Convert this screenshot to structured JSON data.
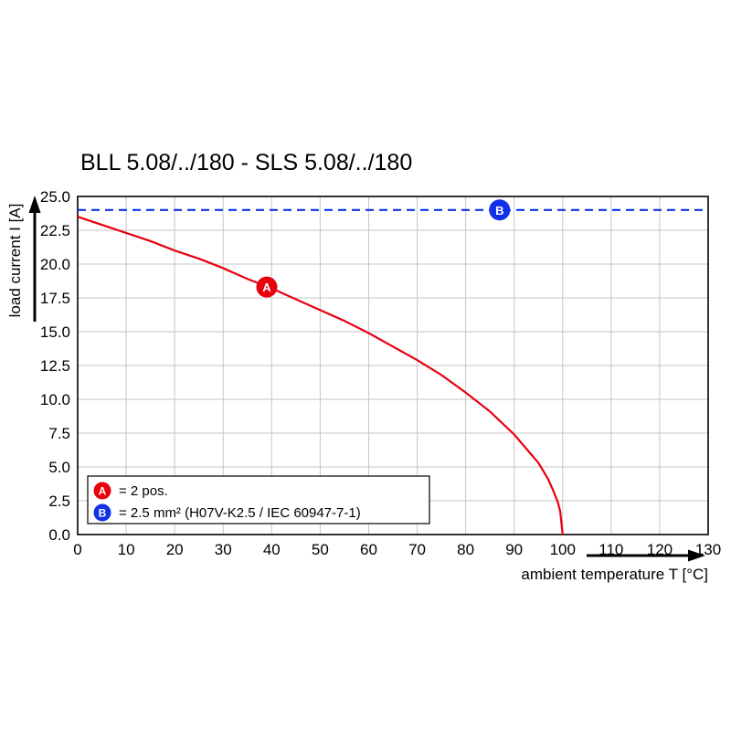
{
  "chart_data": {
    "type": "line",
    "title": "BLL 5.08/../180 - SLS 5.08/../180",
    "xlabel": "ambient temperature T [°C]",
    "ylabel": "load current I [A]",
    "xlim": [
      0,
      130
    ],
    "ylim": [
      0,
      25
    ],
    "xticks": [
      0,
      10,
      20,
      30,
      40,
      50,
      60,
      70,
      80,
      90,
      100,
      110,
      120,
      130
    ],
    "yticks": [
      0,
      2.5,
      5,
      7.5,
      10,
      12.5,
      15,
      17.5,
      20,
      22.5,
      25
    ],
    "grid": true,
    "colors": {
      "curve_red": "#e8000d",
      "line_blue": "#1031e8",
      "grid_gray": "#c6c6c6",
      "frame_black": "#000000"
    },
    "series": [
      {
        "name": "A",
        "style": "solid",
        "color": "#e8000d",
        "x": [
          0,
          5,
          10,
          15,
          20,
          25,
          30,
          35,
          40,
          45,
          50,
          55,
          60,
          65,
          70,
          75,
          80,
          85,
          90,
          95,
          96,
          97,
          98,
          99,
          99.5,
          100
        ],
        "y": [
          23.5,
          22.9,
          22.3,
          21.7,
          21.0,
          20.4,
          19.7,
          18.9,
          18.2,
          17.4,
          16.6,
          15.8,
          14.9,
          13.9,
          12.9,
          11.8,
          10.5,
          9.1,
          7.4,
          5.3,
          4.7,
          4.1,
          3.3,
          2.4,
          1.7,
          0
        ]
      },
      {
        "name": "B",
        "style": "dashed",
        "color": "#1031e8",
        "x": [
          0,
          130
        ],
        "y": [
          24,
          24
        ]
      }
    ],
    "markers": [
      {
        "label": "A",
        "x": 39,
        "y": 18.3,
        "color": "#e8000d"
      },
      {
        "label": "B",
        "x": 87,
        "y": 24,
        "color": "#1031e8"
      }
    ],
    "legend": {
      "position": "bottom-left-inside",
      "entries": [
        {
          "label": "A",
          "color": "#e8000d",
          "text": "= 2 pos."
        },
        {
          "label": "B",
          "color": "#1031e8",
          "text": "= 2.5 mm² (H07V-K2.5 / IEC 60947-7-1)"
        }
      ]
    }
  }
}
